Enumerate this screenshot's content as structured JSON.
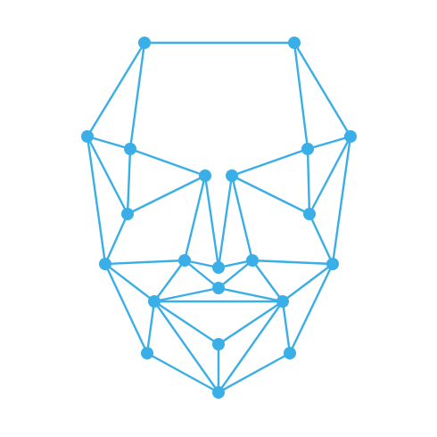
{
  "icon": {
    "name": "face-mesh-icon",
    "color": "#3aaee6",
    "background": "#ffffff"
  }
}
